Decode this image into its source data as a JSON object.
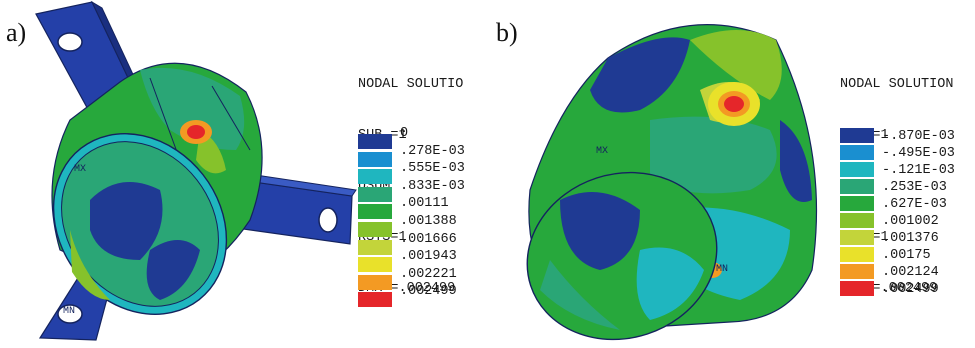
{
  "panels": [
    {
      "label": "a)",
      "header": [
        "NODAL SOLUTIO",
        "SUB =1",
        "USUM",
        "RSYS=1",
        "DMX =.002499"
      ],
      "legend": [
        {
          "color": "#1f3a93",
          "value": "0"
        },
        {
          "color": "#1a8fd0",
          "value": ".278E-03"
        },
        {
          "color": "#1fb6bf",
          "value": ".555E-03"
        },
        {
          "color": "#2aa676",
          "value": ".833E-03"
        },
        {
          "color": "#27a83c",
          "value": ".00111"
        },
        {
          "color": "#86c22b",
          "value": ".001388"
        },
        {
          "color": "#c3d43a",
          "value": ".001666"
        },
        {
          "color": "#e9e12a",
          "value": ".001943"
        },
        {
          "color": "#f39a23",
          "value": ".002221"
        },
        {
          "color": "#e5262a",
          "value": ".002499"
        }
      ],
      "markers": [
        "MX",
        "MN"
      ]
    },
    {
      "label": "b)",
      "header": [
        "NODAL SOLUTION",
        "SUB =1",
        "UX",
        "RSYS=1",
        "DMX =.002499"
      ],
      "legend": [
        {
          "color": "#1f3a93",
          "value": "-.870E-03"
        },
        {
          "color": "#1a8fd0",
          "value": "-.495E-03"
        },
        {
          "color": "#1fb6bf",
          "value": "-.121E-03"
        },
        {
          "color": "#2aa676",
          "value": ".253E-03"
        },
        {
          "color": "#27a83c",
          "value": ".627E-03"
        },
        {
          "color": "#86c22b",
          "value": ".001002"
        },
        {
          "color": "#c3d43a",
          "value": ".001376"
        },
        {
          "color": "#e9e12a",
          "value": ".00175"
        },
        {
          "color": "#f39a23",
          "value": ".002124"
        },
        {
          "color": "#e5262a",
          "value": ".002499"
        }
      ],
      "markers": [
        "MX",
        "MN"
      ]
    }
  ]
}
